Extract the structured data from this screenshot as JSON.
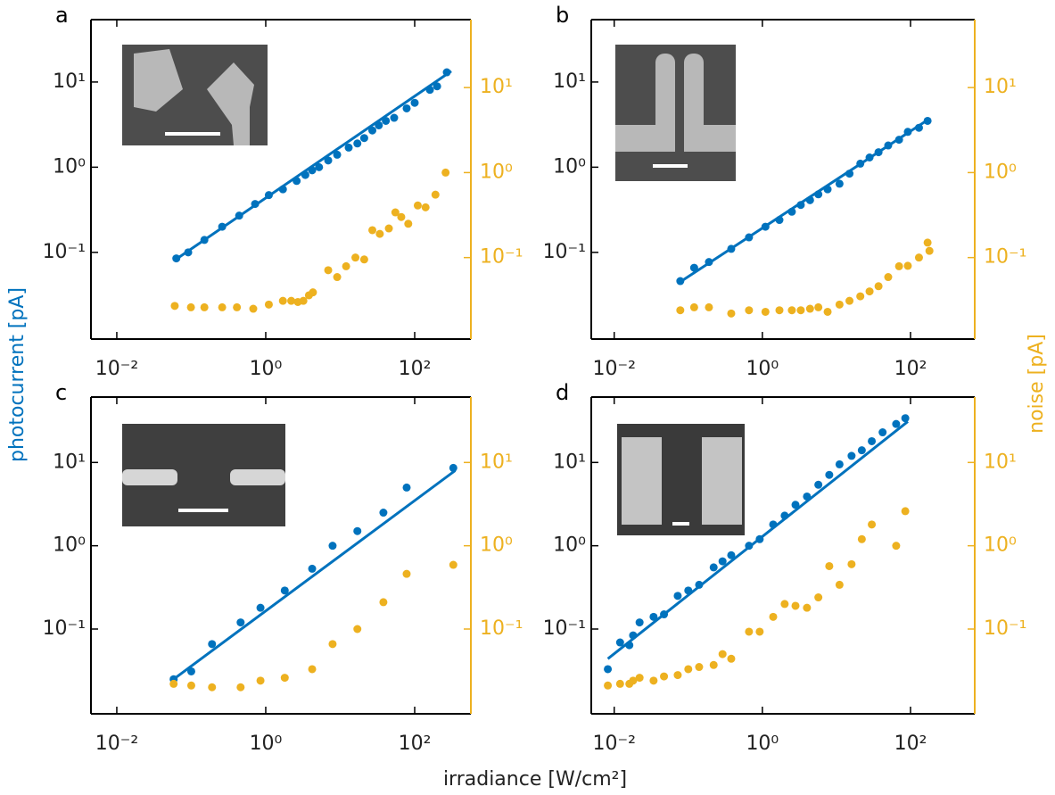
{
  "xlabel": "irradiance [W/cm²]",
  "ylabel": "photocurrent [pA]",
  "y2label": "noise [pA]",
  "chart_data": [
    {
      "type": "scatter",
      "label": "a",
      "xlog": true,
      "ylog": true,
      "y2log": true,
      "xlim": [
        0.0045,
        568
      ],
      "xticks": [
        {
          "value": 0.01,
          "label": "10⁻²"
        },
        {
          "value": 1,
          "label": "10⁰"
        },
        {
          "value": 100,
          "label": "10²"
        }
      ],
      "ylim": [
        0.0096,
        54
      ],
      "yticks": [
        {
          "value": 0.1,
          "label": "10⁻¹"
        },
        {
          "value": 1,
          "label": "10⁰"
        },
        {
          "value": 10,
          "label": "10¹"
        }
      ],
      "y2lim": [
        0.011,
        63
      ],
      "y2ticks": [
        {
          "value": 0.1,
          "label": "10⁻¹"
        },
        {
          "value": 1,
          "label": "10⁰"
        },
        {
          "value": 10,
          "label": "10¹"
        }
      ],
      "y2color": "#edb120",
      "series": [
        {
          "mode": "markers",
          "color": "#0072bd",
          "x": [
            0.063,
            0.091,
            0.15,
            0.26,
            0.44,
            0.72,
            1.1,
            1.7,
            2.6,
            3.4,
            4.2,
            5.2,
            6.9,
            9.1,
            13,
            17,
            21,
            27,
            33,
            41,
            53,
            78,
            100,
            160,
            200,
            270
          ],
          "values": [
            0.085,
            0.1,
            0.14,
            0.2,
            0.27,
            0.37,
            0.47,
            0.55,
            0.69,
            0.81,
            0.92,
            1.0,
            1.2,
            1.4,
            1.7,
            1.9,
            2.2,
            2.7,
            3.1,
            3.5,
            3.8,
            4.9,
            5.7,
            8.1,
            8.9,
            13
          ]
        },
        {
          "mode": "line",
          "color": "#0072bd",
          "x": [
            0.06,
            310
          ],
          "values": [
            0.081,
            13.4
          ]
        },
        {
          "mode": "markers",
          "axis": "y2",
          "color": "#edb120",
          "x": [
            0.06,
            0.099,
            0.15,
            0.26,
            0.41,
            0.68,
            1.1,
            1.7,
            2.2,
            2.7,
            3.2,
            3.8,
            4.3,
            6.9,
            9.1,
            12,
            16,
            21,
            27,
            34,
            45,
            55,
            66,
            82,
            110,
            140,
            190,
            260
          ],
          "values": [
            0.027,
            0.026,
            0.026,
            0.026,
            0.026,
            0.025,
            0.028,
            0.031,
            0.031,
            0.03,
            0.031,
            0.036,
            0.039,
            0.071,
            0.059,
            0.079,
            0.1,
            0.095,
            0.21,
            0.19,
            0.22,
            0.34,
            0.3,
            0.25,
            0.41,
            0.39,
            0.55,
            1.0
          ]
        }
      ]
    },
    {
      "type": "scatter",
      "label": "b",
      "xlog": true,
      "ylog": true,
      "y2log": true,
      "xlim": [
        0.0049,
        736
      ],
      "xticks": [
        {
          "value": 0.01,
          "label": "10⁻²"
        },
        {
          "value": 1,
          "label": "10⁰"
        },
        {
          "value": 100,
          "label": "10²"
        }
      ],
      "ylim": [
        0.0096,
        54
      ],
      "yticks": [
        {
          "value": 0.1,
          "label": "10⁻¹"
        },
        {
          "value": 1,
          "label": "10⁰"
        },
        {
          "value": 10,
          "label": "10¹"
        }
      ],
      "y2lim": [
        0.011,
        63
      ],
      "y2ticks": [
        {
          "value": 0.1,
          "label": "10⁻¹"
        },
        {
          "value": 1,
          "label": "10⁰"
        },
        {
          "value": 10,
          "label": "10¹"
        }
      ],
      "y2color": "#edb120",
      "series": [
        {
          "mode": "markers",
          "color": "#0072bd",
          "x": [
            0.078,
            0.12,
            0.19,
            0.38,
            0.66,
            1.1,
            1.7,
            2.5,
            3.3,
            4.4,
            5.7,
            7.6,
            11,
            15,
            21,
            28,
            37,
            50,
            70,
            92,
            130,
            170
          ],
          "values": [
            0.046,
            0.066,
            0.077,
            0.11,
            0.15,
            0.2,
            0.24,
            0.3,
            0.36,
            0.41,
            0.48,
            0.55,
            0.64,
            0.84,
            1.1,
            1.3,
            1.5,
            1.8,
            2.1,
            2.6,
            2.9,
            3.5
          ]
        },
        {
          "mode": "line",
          "color": "#0072bd",
          "x": [
            0.078,
            180
          ],
          "values": [
            0.045,
            3.7
          ]
        },
        {
          "mode": "markers",
          "axis": "y2",
          "color": "#edb120",
          "x": [
            0.078,
            0.12,
            0.19,
            0.38,
            0.66,
            1.1,
            1.7,
            2.5,
            3.3,
            4.4,
            5.7,
            7.6,
            11,
            15,
            21,
            28,
            37,
            50,
            70,
            92,
            130,
            170,
            180
          ],
          "values": [
            0.024,
            0.026,
            0.026,
            0.022,
            0.024,
            0.023,
            0.024,
            0.024,
            0.024,
            0.025,
            0.026,
            0.023,
            0.028,
            0.031,
            0.035,
            0.04,
            0.046,
            0.059,
            0.079,
            0.08,
            0.1,
            0.15,
            0.12
          ]
        }
      ]
    },
    {
      "type": "scatter",
      "label": "c",
      "xlog": true,
      "ylog": true,
      "y2log": true,
      "xlim": [
        0.0045,
        568
      ],
      "xticks": [
        {
          "value": 0.01,
          "label": "10⁻²"
        },
        {
          "value": 1,
          "label": "10⁰"
        },
        {
          "value": 100,
          "label": "10²"
        }
      ],
      "ylim": [
        0.0096,
        61
      ],
      "yticks": [
        {
          "value": 0.1,
          "label": "10⁻¹"
        },
        {
          "value": 1,
          "label": "10⁰"
        },
        {
          "value": 10,
          "label": "10¹"
        }
      ],
      "y2lim": [
        0.0096,
        61
      ],
      "y2ticks": [
        {
          "value": 0.1,
          "label": "10⁻¹"
        },
        {
          "value": 1,
          "label": "10⁰"
        },
        {
          "value": 10,
          "label": "10¹"
        }
      ],
      "y2color": "#edb120",
      "series": [
        {
          "mode": "markers",
          "color": "#0072bd",
          "x": [
            0.058,
            0.1,
            0.19,
            0.46,
            0.85,
            1.8,
            4.2,
            7.9,
            17,
            38,
            78,
            330
          ],
          "values": [
            0.025,
            0.031,
            0.066,
            0.12,
            0.18,
            0.29,
            0.53,
            1.0,
            1.5,
            2.5,
            5.0,
            8.6
          ]
        },
        {
          "mode": "line",
          "color": "#0072bd",
          "x": [
            0.058,
            350
          ],
          "values": [
            0.025,
            8.0
          ]
        },
        {
          "mode": "markers",
          "axis": "y2",
          "color": "#edb120",
          "x": [
            0.058,
            0.1,
            0.19,
            0.46,
            0.85,
            1.8,
            4.2,
            7.9,
            17,
            38,
            78,
            330
          ],
          "values": [
            0.022,
            0.021,
            0.02,
            0.02,
            0.024,
            0.026,
            0.033,
            0.066,
            0.1,
            0.21,
            0.46,
            0.59
          ]
        }
      ]
    },
    {
      "type": "scatter",
      "label": "d",
      "xlog": true,
      "ylog": true,
      "y2log": true,
      "xlim": [
        0.0049,
        736
      ],
      "xticks": [
        {
          "value": 0.01,
          "label": "10⁻²"
        },
        {
          "value": 1,
          "label": "10⁰"
        },
        {
          "value": 100,
          "label": "10²"
        }
      ],
      "ylim": [
        0.0096,
        61
      ],
      "yticks": [
        {
          "value": 0.1,
          "label": "10⁻¹"
        },
        {
          "value": 1,
          "label": "10⁰"
        },
        {
          "value": 10,
          "label": "10¹"
        }
      ],
      "y2lim": [
        0.0096,
        61
      ],
      "y2ticks": [
        {
          "value": 0.1,
          "label": "10⁻¹"
        },
        {
          "value": 1,
          "label": "10⁰"
        },
        {
          "value": 10,
          "label": "10¹"
        }
      ],
      "y2color": "#edb120",
      "series": [
        {
          "mode": "markers",
          "color": "#0072bd",
          "x": [
            0.0082,
            0.012,
            0.016,
            0.018,
            0.022,
            0.034,
            0.047,
            0.072,
            0.1,
            0.14,
            0.22,
            0.29,
            0.38,
            0.66,
            0.92,
            1.4,
            2.0,
            2.8,
            4.0,
            5.7,
            8.0,
            11,
            16,
            22,
            30,
            42,
            64,
            85
          ],
          "values": [
            0.033,
            0.069,
            0.064,
            0.084,
            0.12,
            0.14,
            0.15,
            0.25,
            0.29,
            0.34,
            0.55,
            0.65,
            0.77,
            1.0,
            1.2,
            1.8,
            2.3,
            3.1,
            3.9,
            5.4,
            7.1,
            9.5,
            12,
            14,
            18,
            23,
            29,
            34
          ]
        },
        {
          "mode": "line",
          "color": "#0072bd",
          "x": [
            0.0082,
            92
          ],
          "values": [
            0.044,
            31
          ]
        },
        {
          "mode": "markers",
          "axis": "y2",
          "color": "#edb120",
          "x": [
            0.0082,
            0.012,
            0.016,
            0.018,
            0.022,
            0.034,
            0.047,
            0.072,
            0.1,
            0.14,
            0.22,
            0.29,
            0.38,
            0.66,
            0.92,
            1.4,
            2.0,
            2.8,
            4.0,
            5.7,
            8.0,
            11,
            16,
            22,
            30,
            64,
            85
          ],
          "values": [
            0.021,
            0.022,
            0.022,
            0.024,
            0.026,
            0.024,
            0.027,
            0.028,
            0.033,
            0.035,
            0.037,
            0.05,
            0.044,
            0.093,
            0.093,
            0.14,
            0.2,
            0.19,
            0.18,
            0.24,
            0.57,
            0.34,
            0.6,
            1.2,
            1.8,
            1.0,
            2.6
          ]
        }
      ]
    }
  ]
}
